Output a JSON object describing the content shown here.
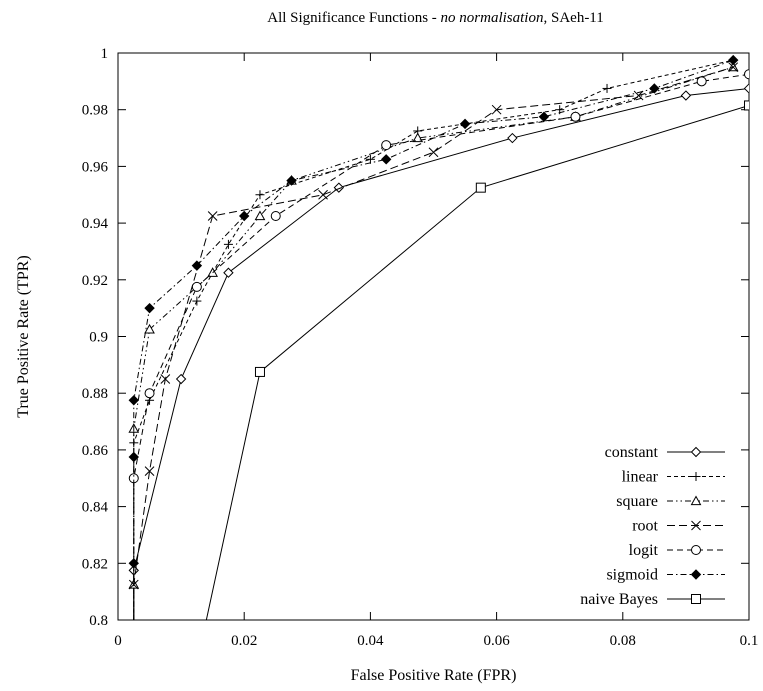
{
  "chart_data": {
    "type": "line",
    "title": "All Significance Functions - no normalisation, SAeh-11",
    "title_parts": [
      {
        "text": "All Significance Functions - ",
        "italic": false
      },
      {
        "text": "no normalisation",
        "italic": true
      },
      {
        "text": ", SAeh-11",
        "italic": false
      }
    ],
    "xlabel": "False Positive Rate (FPR)",
    "ylabel": "True Positive Rate (TPR)",
    "xlim": [
      0,
      0.1
    ],
    "ylim": [
      0.8,
      1.0
    ],
    "xticks": [
      "0",
      "0.02",
      "0.04",
      "0.06",
      "0.08",
      "0.1"
    ],
    "yticks": [
      "0.8",
      "0.82",
      "0.84",
      "0.86",
      "0.88",
      "0.9",
      "0.92",
      "0.94",
      "0.96",
      "0.98",
      "1"
    ],
    "grid": false,
    "legend_position": "bottom-right",
    "series": [
      {
        "name": "constant",
        "marker": "diamond-open",
        "line": "solid",
        "points": [
          [
            0.0025,
            0.795
          ],
          [
            0.0025,
            0.8175
          ],
          [
            0.01,
            0.885
          ],
          [
            0.0175,
            0.9225
          ],
          [
            0.035,
            0.9525
          ],
          [
            0.0625,
            0.97
          ],
          [
            0.09,
            0.985
          ],
          [
            0.1,
            0.9875
          ]
        ]
      },
      {
        "name": "linear",
        "marker": "plus",
        "line": "dashed-short",
        "points": [
          [
            0.0025,
            0.795
          ],
          [
            0.0025,
            0.8625
          ],
          [
            0.005,
            0.8775
          ],
          [
            0.0125,
            0.9125
          ],
          [
            0.0175,
            0.9325
          ],
          [
            0.0225,
            0.95
          ],
          [
            0.04,
            0.9625
          ],
          [
            0.0475,
            0.9725
          ],
          [
            0.07,
            0.98
          ],
          [
            0.0775,
            0.9875
          ],
          [
            0.0975,
            0.9975
          ]
        ]
      },
      {
        "name": "square",
        "marker": "triangle-open",
        "line": "dash-dot-dot",
        "points": [
          [
            0.0025,
            0.795
          ],
          [
            0.0025,
            0.8125
          ],
          [
            0.0025,
            0.8675
          ],
          [
            0.005,
            0.9025
          ],
          [
            0.015,
            0.9225
          ],
          [
            0.0225,
            0.9425
          ],
          [
            0.0275,
            0.955
          ],
          [
            0.0475,
            0.97
          ],
          [
            0.0725,
            0.9775
          ],
          [
            0.0975,
            0.995
          ]
        ]
      },
      {
        "name": "root",
        "marker": "cross",
        "line": "dashed-long",
        "points": [
          [
            0.0025,
            0.795
          ],
          [
            0.0025,
            0.8125
          ],
          [
            0.005,
            0.8525
          ],
          [
            0.0075,
            0.885
          ],
          [
            0.015,
            0.9425
          ],
          [
            0.0325,
            0.95
          ],
          [
            0.05,
            0.965
          ],
          [
            0.06,
            0.98
          ],
          [
            0.0825,
            0.985
          ],
          [
            0.0975,
            0.995
          ]
        ]
      },
      {
        "name": "logit",
        "marker": "circle-open",
        "line": "dashed-medium",
        "points": [
          [
            0.0025,
            0.795
          ],
          [
            0.0025,
            0.85
          ],
          [
            0.005,
            0.88
          ],
          [
            0.0125,
            0.9175
          ],
          [
            0.025,
            0.9425
          ],
          [
            0.0425,
            0.9675
          ],
          [
            0.0725,
            0.9775
          ],
          [
            0.0925,
            0.99
          ],
          [
            0.1,
            0.9925
          ]
        ]
      },
      {
        "name": "sigmoid",
        "marker": "diamond-filled",
        "line": "dash-dot",
        "points": [
          [
            0.0025,
            0.795
          ],
          [
            0.0025,
            0.82
          ],
          [
            0.0025,
            0.8575
          ],
          [
            0.0025,
            0.8775
          ],
          [
            0.005,
            0.91
          ],
          [
            0.0125,
            0.925
          ],
          [
            0.02,
            0.9425
          ],
          [
            0.0275,
            0.955
          ],
          [
            0.0425,
            0.9625
          ],
          [
            0.055,
            0.975
          ],
          [
            0.0675,
            0.9775
          ],
          [
            0.085,
            0.9875
          ],
          [
            0.0975,
            0.9975
          ]
        ]
      },
      {
        "name": "naive Bayes",
        "marker": "square-open",
        "line": "solid",
        "points": [
          [
            0.014,
            0.8
          ],
          [
            0.0225,
            0.8875
          ],
          [
            0.0575,
            0.9525
          ],
          [
            0.1,
            0.9815
          ]
        ]
      }
    ]
  }
}
